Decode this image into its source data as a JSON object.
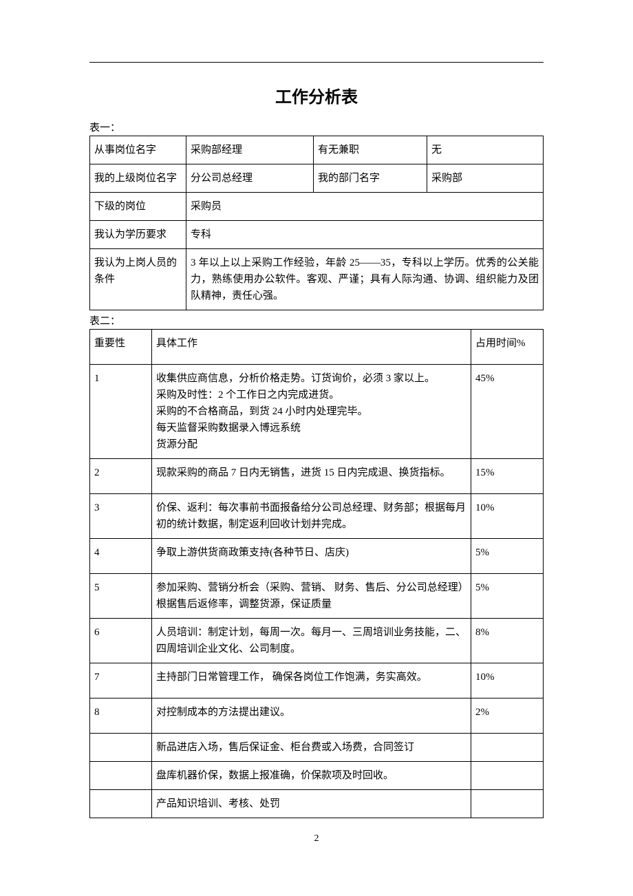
{
  "page": {
    "title": "工作分析表",
    "table1_label": "表一：",
    "table2_label": "表二：",
    "page_number": "2"
  },
  "table1": {
    "r1": {
      "c1": "从事岗位名字",
      "c2": "采购部经理",
      "c3": "有无兼职",
      "c4": "无"
    },
    "r2": {
      "c1": "我的上级岗位名字",
      "c2": "分公司总经理",
      "c3": "我的部门名字",
      "c4": "采购部"
    },
    "r3": {
      "c1": "下级的岗位",
      "c2": "采购员"
    },
    "r4": {
      "c1": "我认为学历要求",
      "c2": "专科"
    },
    "r5": {
      "c1": "我认为上岗人员的条件",
      "c2": "3 年以上以上采购工作经验，年龄 25——35，专科以上学历。优秀的公关能力，熟练使用办公软件。客观、严谨；具有人际沟通、协调、组织能力及团队精神，责任心强。"
    }
  },
  "table2": {
    "header": {
      "c1": "重要性",
      "c2": "具体工作",
      "c3": "占用时间%"
    },
    "rows": [
      {
        "c1": "1",
        "c2": "收集供应商信息，分析价格走势。订货询价，必须 3 家以上。\n采购及时性：2 个工作日之内完成进货。\n采购的不合格商品，到货 24 小时内处理完毕。\n每天监督采购数据录入博远系统\n货源分配",
        "c3": "45%"
      },
      {
        "c1": "2",
        "c2": "现款采购的商品 7 日内无销售，进货 15 日内完成退、换货指标。",
        "c3": "15%"
      },
      {
        "c1": "3",
        "c2": "价保、返利：每次事前书面报备给分公司总经理、财务部；根据每月初的统计数据，制定返利回收计划并完成。",
        "c3": "10%"
      },
      {
        "c1": "4",
        "c2": "争取上游供货商政策支持(各种节日、店庆)",
        "c3": "5%"
      },
      {
        "c1": "5",
        "c2": "参加采购、营销分析会（采购、营销、 财务、售后、分公司总经理）根据售后返修率，调整货源，保证质量",
        "c3": "5%"
      },
      {
        "c1": "6",
        "c2": "人员培训：制定计划，每周一次。每月一、三周培训业务技能，二、四周培训企业文化、公司制度。",
        "c3": "8%"
      },
      {
        "c1": "7",
        "c2": "主持部门日常管理工作， 确保各岗位工作饱满，务实高效。",
        "c3": "10%"
      },
      {
        "c1": "8",
        "c2": "对控制成本的方法提出建议。",
        "c3": "2%"
      },
      {
        "c1": "",
        "c2": "新品进店入场，售后保证金、柜台费或入场费，合同签订",
        "c3": ""
      },
      {
        "c1": "",
        "c2": "盘库机器价保，数据上报准确，价保款项及时回收。",
        "c3": ""
      },
      {
        "c1": "",
        "c2": "产品知识培训、考核、处罚",
        "c3": ""
      }
    ]
  },
  "style": {
    "body_font": "SimSun",
    "title_fontsize": 24,
    "cell_fontsize": 15,
    "border_color": "#000000",
    "background": "#ffffff"
  }
}
